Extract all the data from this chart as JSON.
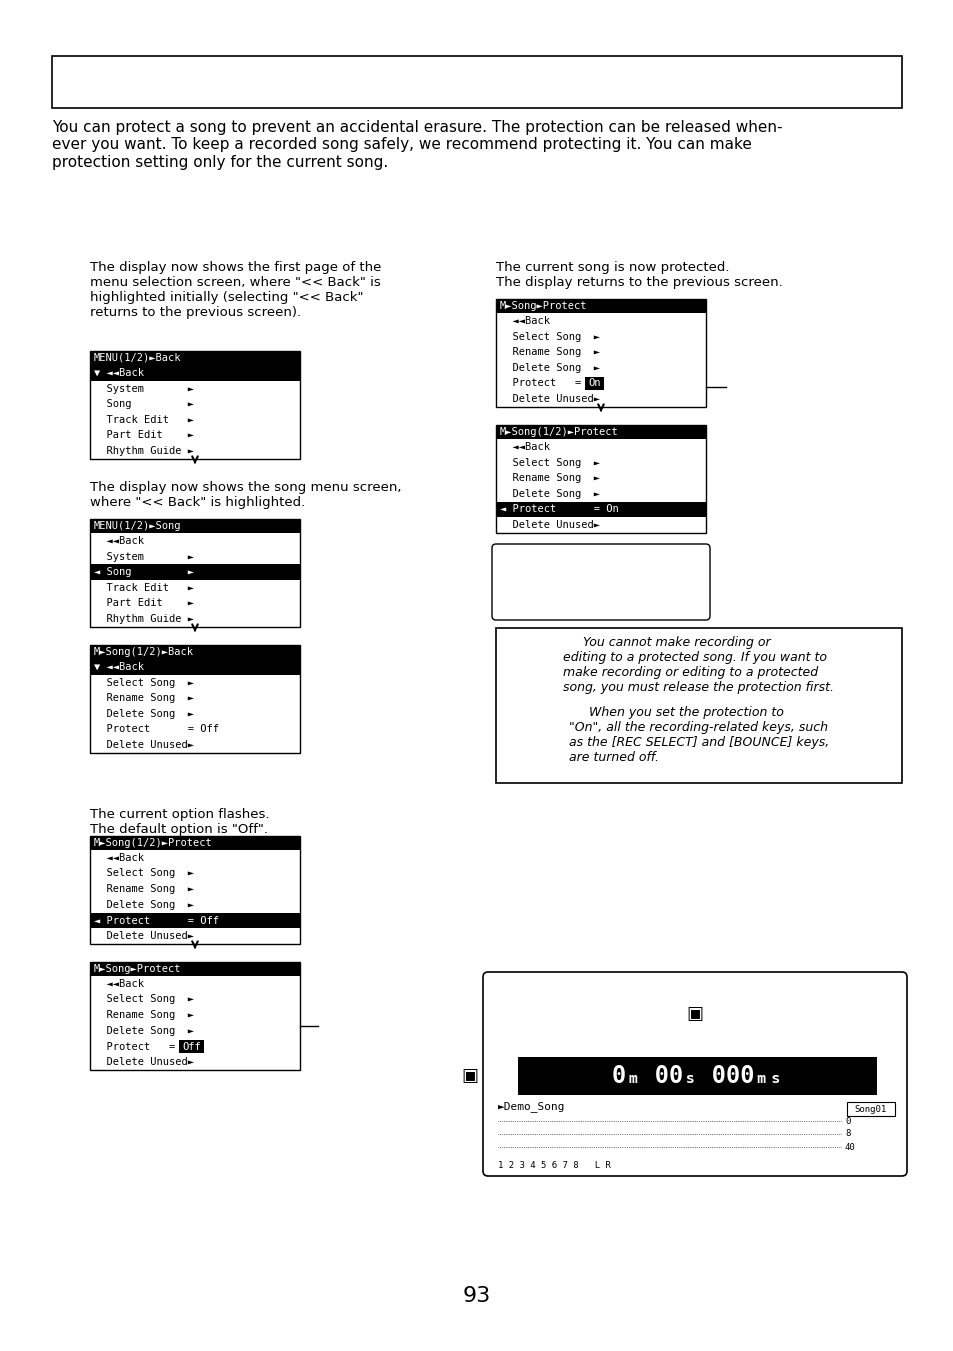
{
  "background_color": "#ffffff",
  "page_number": "93",
  "intro_text": "You can protect a song to prevent an accidental erasure. The protection can be released when-\never you want. To keep a recorded song safely, we recommend protecting it. You can make\nprotection setting only for the current song.",
  "left_col_text1": "The display now shows the first page of the\nmenu selection screen, where \"<< Back\" is\nhighlighted initially (selecting \"<< Back\"\nreturns to the previous screen).",
  "left_col_text2": "The display now shows the song menu screen,\nwhere \"<< Back\" is highlighted.",
  "left_col_text3": "The current option flashes.\nThe default option is \"Off\".",
  "right_col_text1": "The current song is now protected.\nThe display returns to the previous screen.",
  "note_box_text1": "     You cannot make recording or\nediting to a protected song. If you want to\nmake recording or editing to a protected\nsong, you must release the protection first.",
  "note_box_text2": "     When you set the protection to\n\"On\", all the recording-related keys, such\nas the [REC SELECT] and [BOUNCE] keys,\nare turned off.",
  "screens": {
    "menu1": {
      "title": "MENU(1/2)►Back",
      "lines": [
        {
          "text": "▼ ◄◄Back",
          "hl": true
        },
        {
          "text": "  System       ►",
          "hl": false
        },
        {
          "text": "  Song         ►",
          "hl": false
        },
        {
          "text": "  Track Edit   ►",
          "hl": false
        },
        {
          "text": "  Part Edit    ►",
          "hl": false
        },
        {
          "text": "  Rhythm Guide ►",
          "hl": false
        }
      ]
    },
    "menu2": {
      "title": "MENU(1/2)►Song",
      "lines": [
        {
          "text": "  ◄◄Back",
          "hl": false
        },
        {
          "text": "  System       ►",
          "hl": false
        },
        {
          "text": "◄ Song         ►",
          "hl": true
        },
        {
          "text": "  Track Edit   ►",
          "hl": false
        },
        {
          "text": "  Part Edit    ►",
          "hl": false
        },
        {
          "text": "  Rhythm Guide ►",
          "hl": false
        }
      ]
    },
    "menu3": {
      "title": "M►Song(1/2)►Back",
      "lines": [
        {
          "text": "▼ ◄◄Back",
          "hl": true
        },
        {
          "text": "  Select Song  ►",
          "hl": false
        },
        {
          "text": "  Rename Song  ►",
          "hl": false
        },
        {
          "text": "  Delete Song  ►",
          "hl": false
        },
        {
          "text": "  Protect      = Off",
          "hl": false
        },
        {
          "text": "  Delete Unused►",
          "hl": false
        }
      ]
    },
    "menu4": {
      "title": "M►Song(1/2)►Protect",
      "lines": [
        {
          "text": "  ◄◄Back",
          "hl": false
        },
        {
          "text": "  Select Song  ►",
          "hl": false
        },
        {
          "text": "  Rename Song  ►",
          "hl": false
        },
        {
          "text": "  Delete Song  ►",
          "hl": false
        },
        {
          "text": "◄ Protect      = Off",
          "hl": true
        },
        {
          "text": "  Delete Unused►",
          "hl": false
        }
      ]
    },
    "menu5": {
      "title": "M►Song►Protect",
      "lines": [
        {
          "text": "  ◄◄Back",
          "hl": false
        },
        {
          "text": "  Select Song  ►",
          "hl": false
        },
        {
          "text": "  Rename Song  ►",
          "hl": false
        },
        {
          "text": "  Delete Song  ►",
          "hl": false
        },
        {
          "text": "  Protect",
          "hl": false,
          "value": "Off"
        },
        {
          "text": "  Delete Unused►",
          "hl": false
        }
      ]
    },
    "menu6": {
      "title": "M►Song►Protect",
      "lines": [
        {
          "text": "  ◄◄Back",
          "hl": false
        },
        {
          "text": "  Select Song  ►",
          "hl": false
        },
        {
          "text": "  Rename Song  ►",
          "hl": false
        },
        {
          "text": "  Delete Song  ►",
          "hl": false
        },
        {
          "text": "  Protect",
          "hl": false,
          "value": "On"
        },
        {
          "text": "  Delete Unused►",
          "hl": false
        }
      ]
    },
    "menu7": {
      "title": "M►Song(1/2)►Protect",
      "lines": [
        {
          "text": "  ◄◄Back",
          "hl": false
        },
        {
          "text": "  Select Song  ►",
          "hl": false
        },
        {
          "text": "  Rename Song  ►",
          "hl": false
        },
        {
          "text": "  Delete Song  ►",
          "hl": false
        },
        {
          "text": "◄ Protect      = On",
          "hl": true
        },
        {
          "text": "  Delete Unused►",
          "hl": false
        }
      ]
    }
  }
}
